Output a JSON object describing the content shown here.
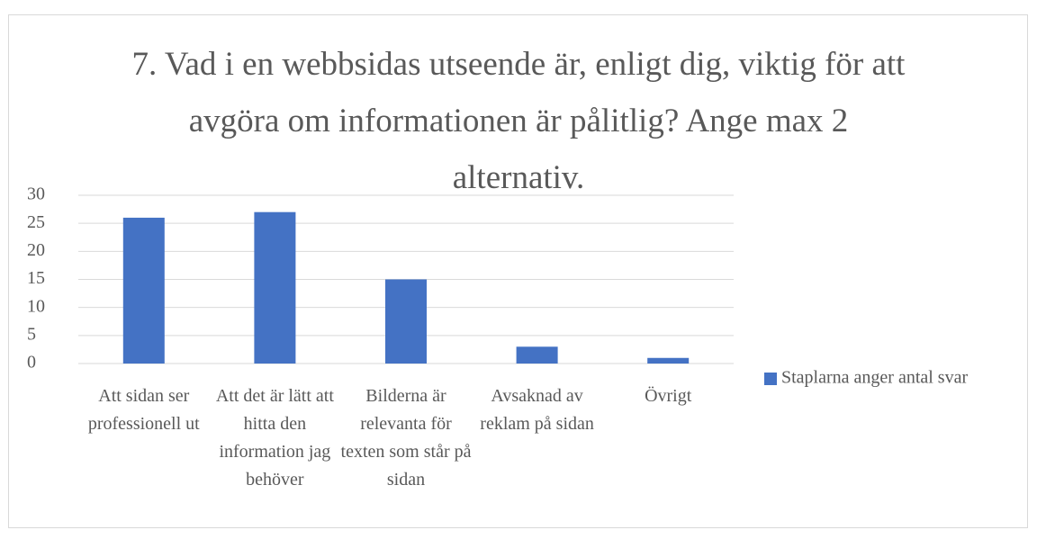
{
  "chart_data": {
    "type": "bar",
    "title": "7. Vad i en webbsidas utseende är, enligt dig, viktig för att avgöra om informationen är pålitlig? Ange max 2 alternativ.",
    "categories": [
      "Att sidan ser professionell ut",
      "Att det är lätt att hitta den information jag behöver",
      "Bilderna är relevanta för texten som står på sidan",
      "Avsaknad av reklam på sidan",
      "Övrigt"
    ],
    "series": [
      {
        "name": "Staplarna anger antal svar",
        "color": "#4472c4",
        "values": [
          26,
          27,
          15,
          3,
          1
        ]
      }
    ],
    "ylim": [
      0,
      30
    ],
    "yticks": [
      0,
      5,
      10,
      15,
      20,
      25,
      30
    ],
    "grid": true,
    "legend": "right"
  }
}
